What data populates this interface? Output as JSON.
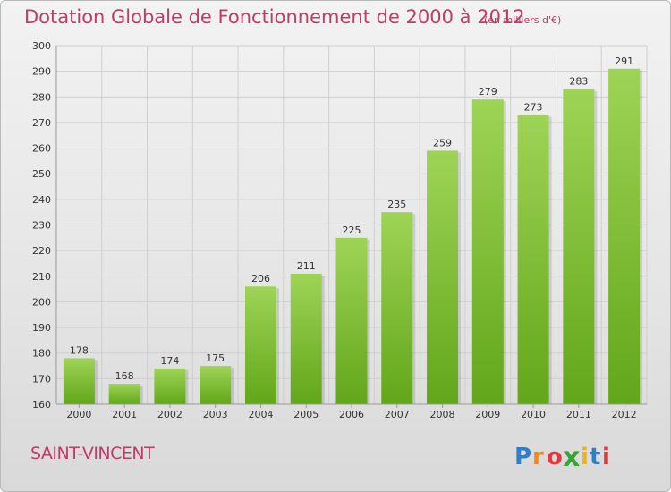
{
  "title": "Dotation Globale de Fonctionnement de 2000 à 2012",
  "unit_note": "(en milliers d'€)",
  "commune": "SAINT-VINCENT",
  "logo": {
    "letters": [
      "P",
      "r",
      "o",
      "x",
      "i",
      "t",
      "i"
    ],
    "text": "Proxiti"
  },
  "colors": {
    "title": "#bf3b6a",
    "bar_top": "#9ed456",
    "bar_bottom": "#62a61a",
    "grid": "#cfcfcf"
  },
  "chart_data": {
    "type": "bar",
    "title": "Dotation Globale de Fonctionnement de 2000 à 2012",
    "xlabel": "",
    "ylabel": "",
    "categories": [
      "2000",
      "2001",
      "2002",
      "2003",
      "2004",
      "2005",
      "2006",
      "2007",
      "2008",
      "2009",
      "2010",
      "2011",
      "2012"
    ],
    "values": [
      178,
      168,
      174,
      175,
      206,
      211,
      225,
      235,
      259,
      279,
      273,
      283,
      291
    ],
    "ylim": [
      160,
      300
    ],
    "yticks": [
      160,
      170,
      180,
      190,
      200,
      210,
      220,
      230,
      240,
      250,
      260,
      270,
      280,
      290,
      300
    ],
    "grid": true,
    "data_labels": true
  }
}
